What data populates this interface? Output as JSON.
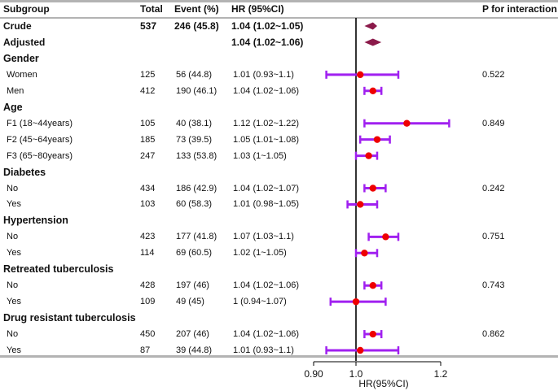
{
  "headers": {
    "subgroup": "Subgroup",
    "total": "Total",
    "event": "Event (%)",
    "hr": "HR (95%CI)",
    "p": "P for interaction"
  },
  "rows": [
    {
      "label": "Crude",
      "kind": "summary",
      "total": "537",
      "event": "246 (45.8)",
      "hr_text": "1.04 (1.02~1.05)",
      "p": "",
      "est": 1.04,
      "lo": 1.02,
      "hi": 1.05
    },
    {
      "label": "Adjusted",
      "kind": "summary",
      "total": "",
      "event": "",
      "hr_text": "1.04 (1.02~1.06)",
      "p": "",
      "est": 1.04,
      "lo": 1.02,
      "hi": 1.06
    },
    {
      "label": "Gender",
      "kind": "group"
    },
    {
      "label": "Women",
      "kind": "item",
      "total": "125",
      "event": "56 (44.8)",
      "hr_text": "1.01 (0.93~1.1)",
      "p": "0.522",
      "est": 1.01,
      "lo": 0.93,
      "hi": 1.1
    },
    {
      "label": "Men",
      "kind": "item",
      "total": "412",
      "event": "190 (46.1)",
      "hr_text": "1.04 (1.02~1.06)",
      "p": "",
      "est": 1.04,
      "lo": 1.02,
      "hi": 1.06
    },
    {
      "label": "Age",
      "kind": "group"
    },
    {
      "label": "F1 (18~44years)",
      "kind": "item",
      "total": "105",
      "event": "40 (38.1)",
      "hr_text": "1.12 (1.02~1.22)",
      "p": "0.849",
      "est": 1.12,
      "lo": 1.02,
      "hi": 1.22
    },
    {
      "label": "F2 (45~64years)",
      "kind": "item",
      "total": "185",
      "event": "73 (39.5)",
      "hr_text": "1.05 (1.01~1.08)",
      "p": "",
      "est": 1.05,
      "lo": 1.01,
      "hi": 1.08
    },
    {
      "label": "F3 (65~80years)",
      "kind": "item",
      "total": "247",
      "event": "133 (53.8)",
      "hr_text": "1.03 (1~1.05)",
      "p": "",
      "est": 1.03,
      "lo": 1.0,
      "hi": 1.05
    },
    {
      "label": "Diabetes",
      "kind": "group"
    },
    {
      "label": "No",
      "kind": "item",
      "total": "434",
      "event": "186 (42.9)",
      "hr_text": "1.04 (1.02~1.07)",
      "p": "0.242",
      "est": 1.04,
      "lo": 1.02,
      "hi": 1.07
    },
    {
      "label": "Yes",
      "kind": "item",
      "total": "103",
      "event": "60 (58.3)",
      "hr_text": "1.01 (0.98~1.05)",
      "p": "",
      "est": 1.01,
      "lo": 0.98,
      "hi": 1.05
    },
    {
      "label": "Hypertension",
      "kind": "group"
    },
    {
      "label": "No",
      "kind": "item",
      "total": "423",
      "event": "177 (41.8)",
      "hr_text": "1.07 (1.03~1.1)",
      "p": "0.751",
      "est": 1.07,
      "lo": 1.03,
      "hi": 1.1
    },
    {
      "label": "Yes",
      "kind": "item",
      "total": "114",
      "event": "69 (60.5)",
      "hr_text": "1.02 (1~1.05)",
      "p": "",
      "est": 1.02,
      "lo": 1.0,
      "hi": 1.05
    },
    {
      "label": "Retreated tuberculosis",
      "kind": "group"
    },
    {
      "label": "No",
      "kind": "item",
      "total": "428",
      "event": "197 (46)",
      "hr_text": "1.04 (1.02~1.06)",
      "p": "0.743",
      "est": 1.04,
      "lo": 1.02,
      "hi": 1.06
    },
    {
      "label": "Yes",
      "kind": "item",
      "total": "109",
      "event": "49 (45)",
      "hr_text": "1 (0.94~1.07)",
      "p": "",
      "est": 1.0,
      "lo": 0.94,
      "hi": 1.07
    },
    {
      "label": "Drug resistant tuberculosis",
      "kind": "group"
    },
    {
      "label": "No",
      "kind": "item",
      "total": "450",
      "event": "207 (46)",
      "hr_text": "1.04 (1.02~1.06)",
      "p": "0.862",
      "est": 1.04,
      "lo": 1.02,
      "hi": 1.06
    },
    {
      "label": "Yes",
      "kind": "item",
      "total": "87",
      "event": "39 (44.8)",
      "hr_text": "1.01 (0.93~1.1)",
      "p": "",
      "est": 1.01,
      "lo": 0.93,
      "hi": 1.1
    }
  ],
  "chart_data": {
    "type": "forest",
    "xlabel": "HR(95%CI)",
    "xticks": [
      0.9,
      1.0,
      1.2
    ],
    "xtick_labels": [
      "0.90",
      "1.0",
      "1.2"
    ],
    "xlim": [
      0.9,
      1.2
    ],
    "reference_line": 1.0,
    "colors": {
      "ci_line": "#a020f0",
      "point": "#ee0000",
      "summary_diamond": "#8b1a4a",
      "reference": "#000000"
    }
  }
}
